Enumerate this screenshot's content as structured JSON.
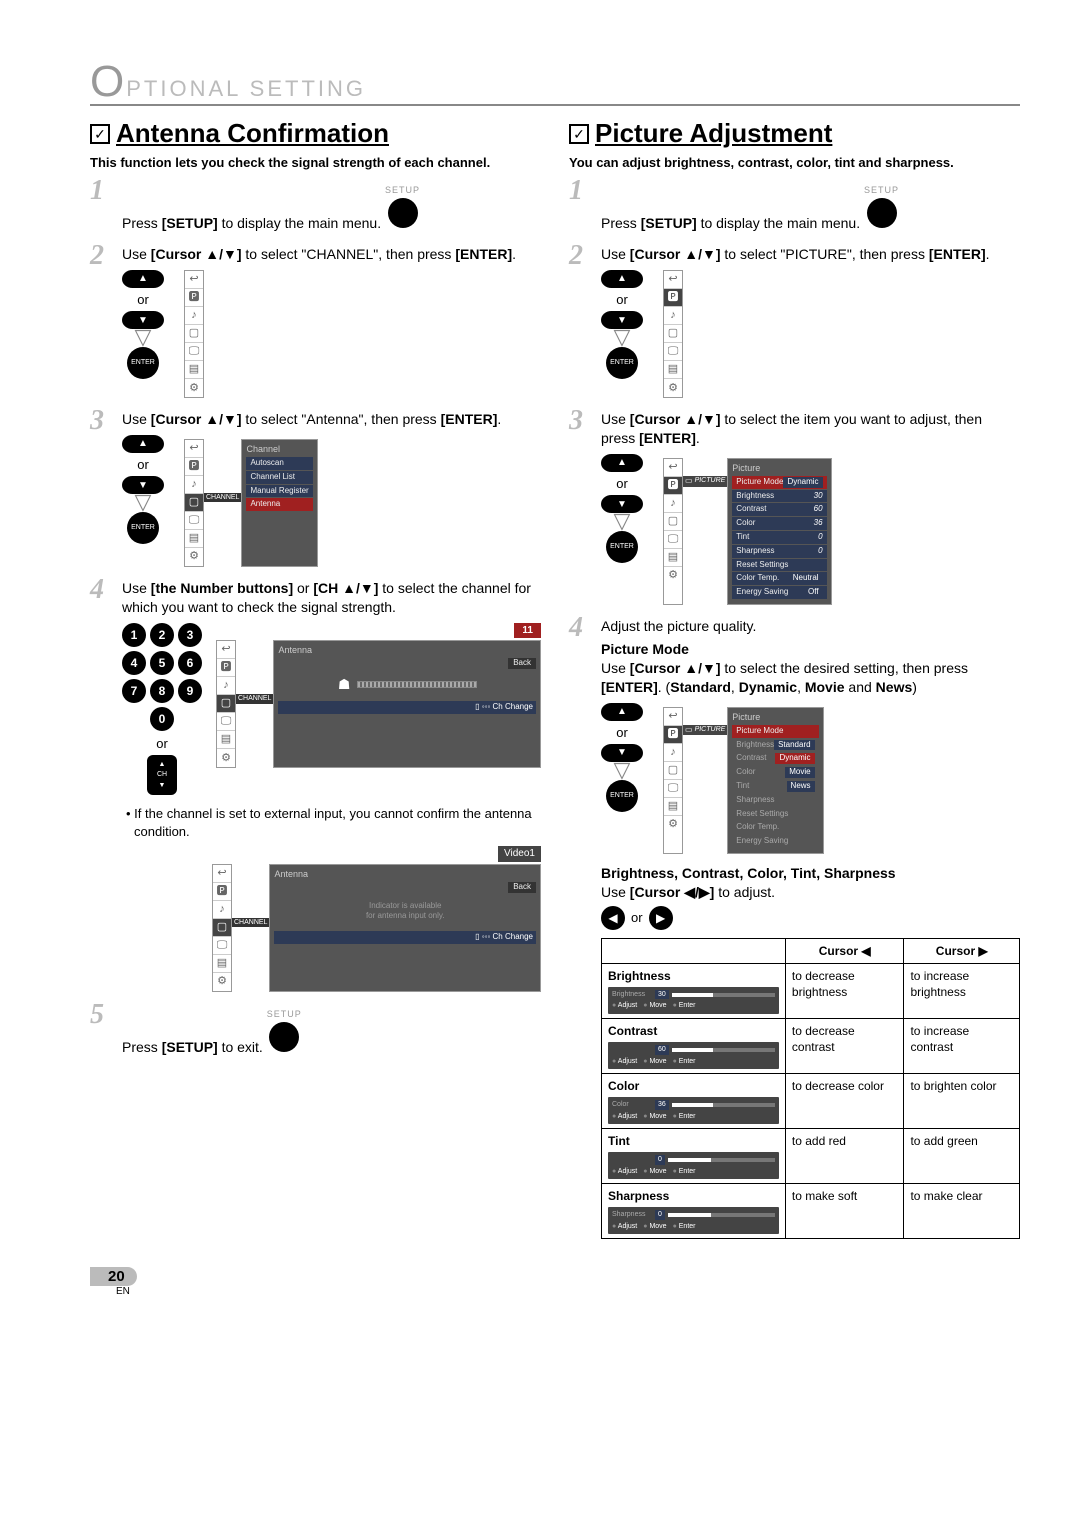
{
  "header": {
    "bigO": "O",
    "rest": "PTIONAL   SETTING"
  },
  "checkIcon": "✓",
  "left": {
    "title": "Antenna Confirmation",
    "intro": "This function lets you check the signal strength of each channel.",
    "step1": {
      "pre": "Press ",
      "b": "[SETUP]",
      "post": " to display the main menu."
    },
    "step2": {
      "pre": "Use ",
      "b1": "[Cursor ▲/▼]",
      "mid": " to select \"CHANNEL\", then press ",
      "b2": "[ENTER]",
      "post": "."
    },
    "step3": {
      "pre": "Use ",
      "b1": "[Cursor ▲/▼]",
      "mid": " to select \"Antenna\", then press ",
      "b2": "[ENTER]",
      "post": "."
    },
    "step4": {
      "pre": "Use ",
      "b1": "[the Number buttons]",
      "mid": " or ",
      "b2": "[CH ▲/▼]",
      "post": " to select the channel for which you want to check the signal strength."
    },
    "step5": {
      "pre": "Press ",
      "b": "[SETUP]",
      "post": " to exit."
    },
    "chNum": "11",
    "videoTag": "Video1",
    "note": "If the channel is set to external input, you cannot confirm the antenna condition.",
    "osd3": {
      "title": "Channel",
      "rows": [
        "Autoscan",
        "Channel List",
        "Manual Register",
        "Antenna"
      ],
      "selected": 3
    },
    "osd4": {
      "title": "Antenna",
      "back": "Back",
      "footer": "Ch Change"
    },
    "osdExt": {
      "msg1": "Indicator is available",
      "msg2": "for antenna input only."
    },
    "setupLabel": "SETUP",
    "or": "or",
    "enter": "ENTER",
    "ch": "CH",
    "sideChannel": "CHANNEL"
  },
  "right": {
    "title": "Picture Adjustment",
    "intro": "You can adjust brightness, contrast, color, tint and sharpness.",
    "step1": {
      "pre": "Press ",
      "b": "[SETUP]",
      "post": " to display the main menu."
    },
    "step2": {
      "pre": "Use ",
      "b1": "[Cursor ▲/▼]",
      "mid": " to select \"PICTURE\", then press ",
      "b2": "[ENTER]",
      "post": "."
    },
    "step3": {
      "pre": "Use ",
      "b1": "[Cursor ▲/▼]",
      "mid": " to select the item you want to adjust, then press ",
      "b2": "[ENTER]",
      "post": "."
    },
    "step4_lead": "Adjust the picture quality.",
    "pm_head": "Picture Mode",
    "pm_text1": "Use ",
    "pm_b1": "[Cursor ▲/▼]",
    "pm_text2": " to select the desired setting, then press ",
    "pm_b2": "[ENTER]",
    "pm_text3": ". (",
    "pm_b3": "Standard",
    "pm_text4": ", ",
    "pm_b4": "Dynamic",
    "pm_text5": ", ",
    "pm_b5": "Movie",
    "pm_text6": " and ",
    "pm_b6": "News",
    "pm_text7": ")",
    "bc_head": "Brightness, Contrast, Color, Tint, Sharpness",
    "bc_text1": "Use ",
    "bc_b1": "[Cursor ◀/▶]",
    "bc_text2": " to adjust.",
    "osd3": {
      "title": "Picture",
      "rows": [
        {
          "l": "Picture Mode",
          "v": "Dynamic",
          "sel": true
        },
        {
          "l": "Brightness",
          "v": "30"
        },
        {
          "l": "Contrast",
          "v": "60"
        },
        {
          "l": "Color",
          "v": "36"
        },
        {
          "l": "Tint",
          "v": "0"
        },
        {
          "l": "Sharpness",
          "v": "0"
        },
        {
          "l": "Reset Settings",
          "v": ""
        },
        {
          "l": "Color Temp.",
          "v": "Neutral"
        },
        {
          "l": "Energy Saving",
          "v": "Off"
        }
      ]
    },
    "osd4": {
      "title": "Picture",
      "rows": [
        {
          "l": "Picture Mode",
          "v": ""
        },
        {
          "l": "Brightness",
          "v": "",
          "opt": "Standard"
        },
        {
          "l": "Contrast",
          "v": "",
          "opt": "Dynamic",
          "optsel": true
        },
        {
          "l": "Color",
          "v": "",
          "opt": "Movie"
        },
        {
          "l": "Tint",
          "v": "",
          "opt": "News"
        },
        {
          "l": "Sharpness",
          "v": ""
        },
        {
          "l": "Reset Settings",
          "v": ""
        },
        {
          "l": "Color Temp.",
          "v": ""
        },
        {
          "l": "Energy Saving",
          "v": ""
        }
      ]
    },
    "sidePicture": "PICTURE",
    "table": {
      "h1": "Cursor ◀",
      "h2": "Cursor ▶",
      "rows": [
        {
          "label": "Brightness",
          "sl": "Brightness",
          "sv": "30",
          "l": "to decrease brightness",
          "r": "to increase brightness"
        },
        {
          "label": "Contrast",
          "sl": "",
          "sv": "60",
          "l": "to decrease contrast",
          "r": "to increase contrast"
        },
        {
          "label": "Color",
          "sl": "Color",
          "sv": "36",
          "l": "to decrease color",
          "r": "to brighten color"
        },
        {
          "label": "Tint",
          "sl": "",
          "sv": "0",
          "l": "to add red",
          "r": "to add green"
        },
        {
          "label": "Sharpness",
          "sl": "Sharpness",
          "sv": "0",
          "l": "to make soft",
          "r": "to make clear"
        }
      ],
      "hints": [
        "Adjust",
        "Move",
        "Enter"
      ]
    }
  },
  "iconbar": [
    "↩",
    "🅿",
    "♪",
    "▢",
    "🖵",
    "▤",
    "⚙"
  ],
  "page": {
    "num": "20",
    "en": "EN"
  },
  "or": "or"
}
